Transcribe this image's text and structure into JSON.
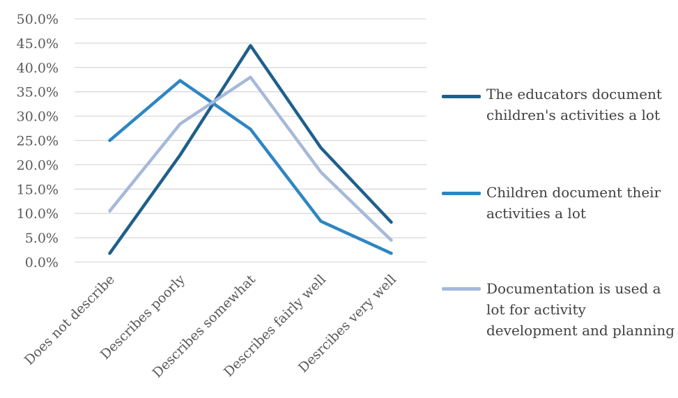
{
  "chart_data": {
    "type": "line",
    "categories": [
      "Does not describe",
      "Describes poorly",
      "Describes somewhat",
      "Describes fairly well",
      "Desrcibes very well"
    ],
    "series": [
      {
        "name": "The educators document children's activities a lot",
        "color": "#1f5f8b",
        "values": [
          1.8,
          22.0,
          44.5,
          23.5,
          8.2
        ]
      },
      {
        "name": "Children document their activities a lot",
        "color": "#2e86c1",
        "values": [
          25.0,
          37.3,
          27.3,
          8.4,
          1.8
        ]
      },
      {
        "name": "Documentation is used a lot for activity development and planning",
        "color": "#a6b9d9",
        "values": [
          10.5,
          28.4,
          38.0,
          18.5,
          4.5
        ]
      }
    ],
    "yticks": [
      "0.0%",
      "5.0%",
      "10.0%",
      "15.0%",
      "20.0%",
      "25.0%",
      "30.0%",
      "35.0%",
      "40.0%",
      "45.0%",
      "50.0%"
    ],
    "ylim": [
      0,
      50
    ],
    "grid": true,
    "legend_position": "right"
  }
}
